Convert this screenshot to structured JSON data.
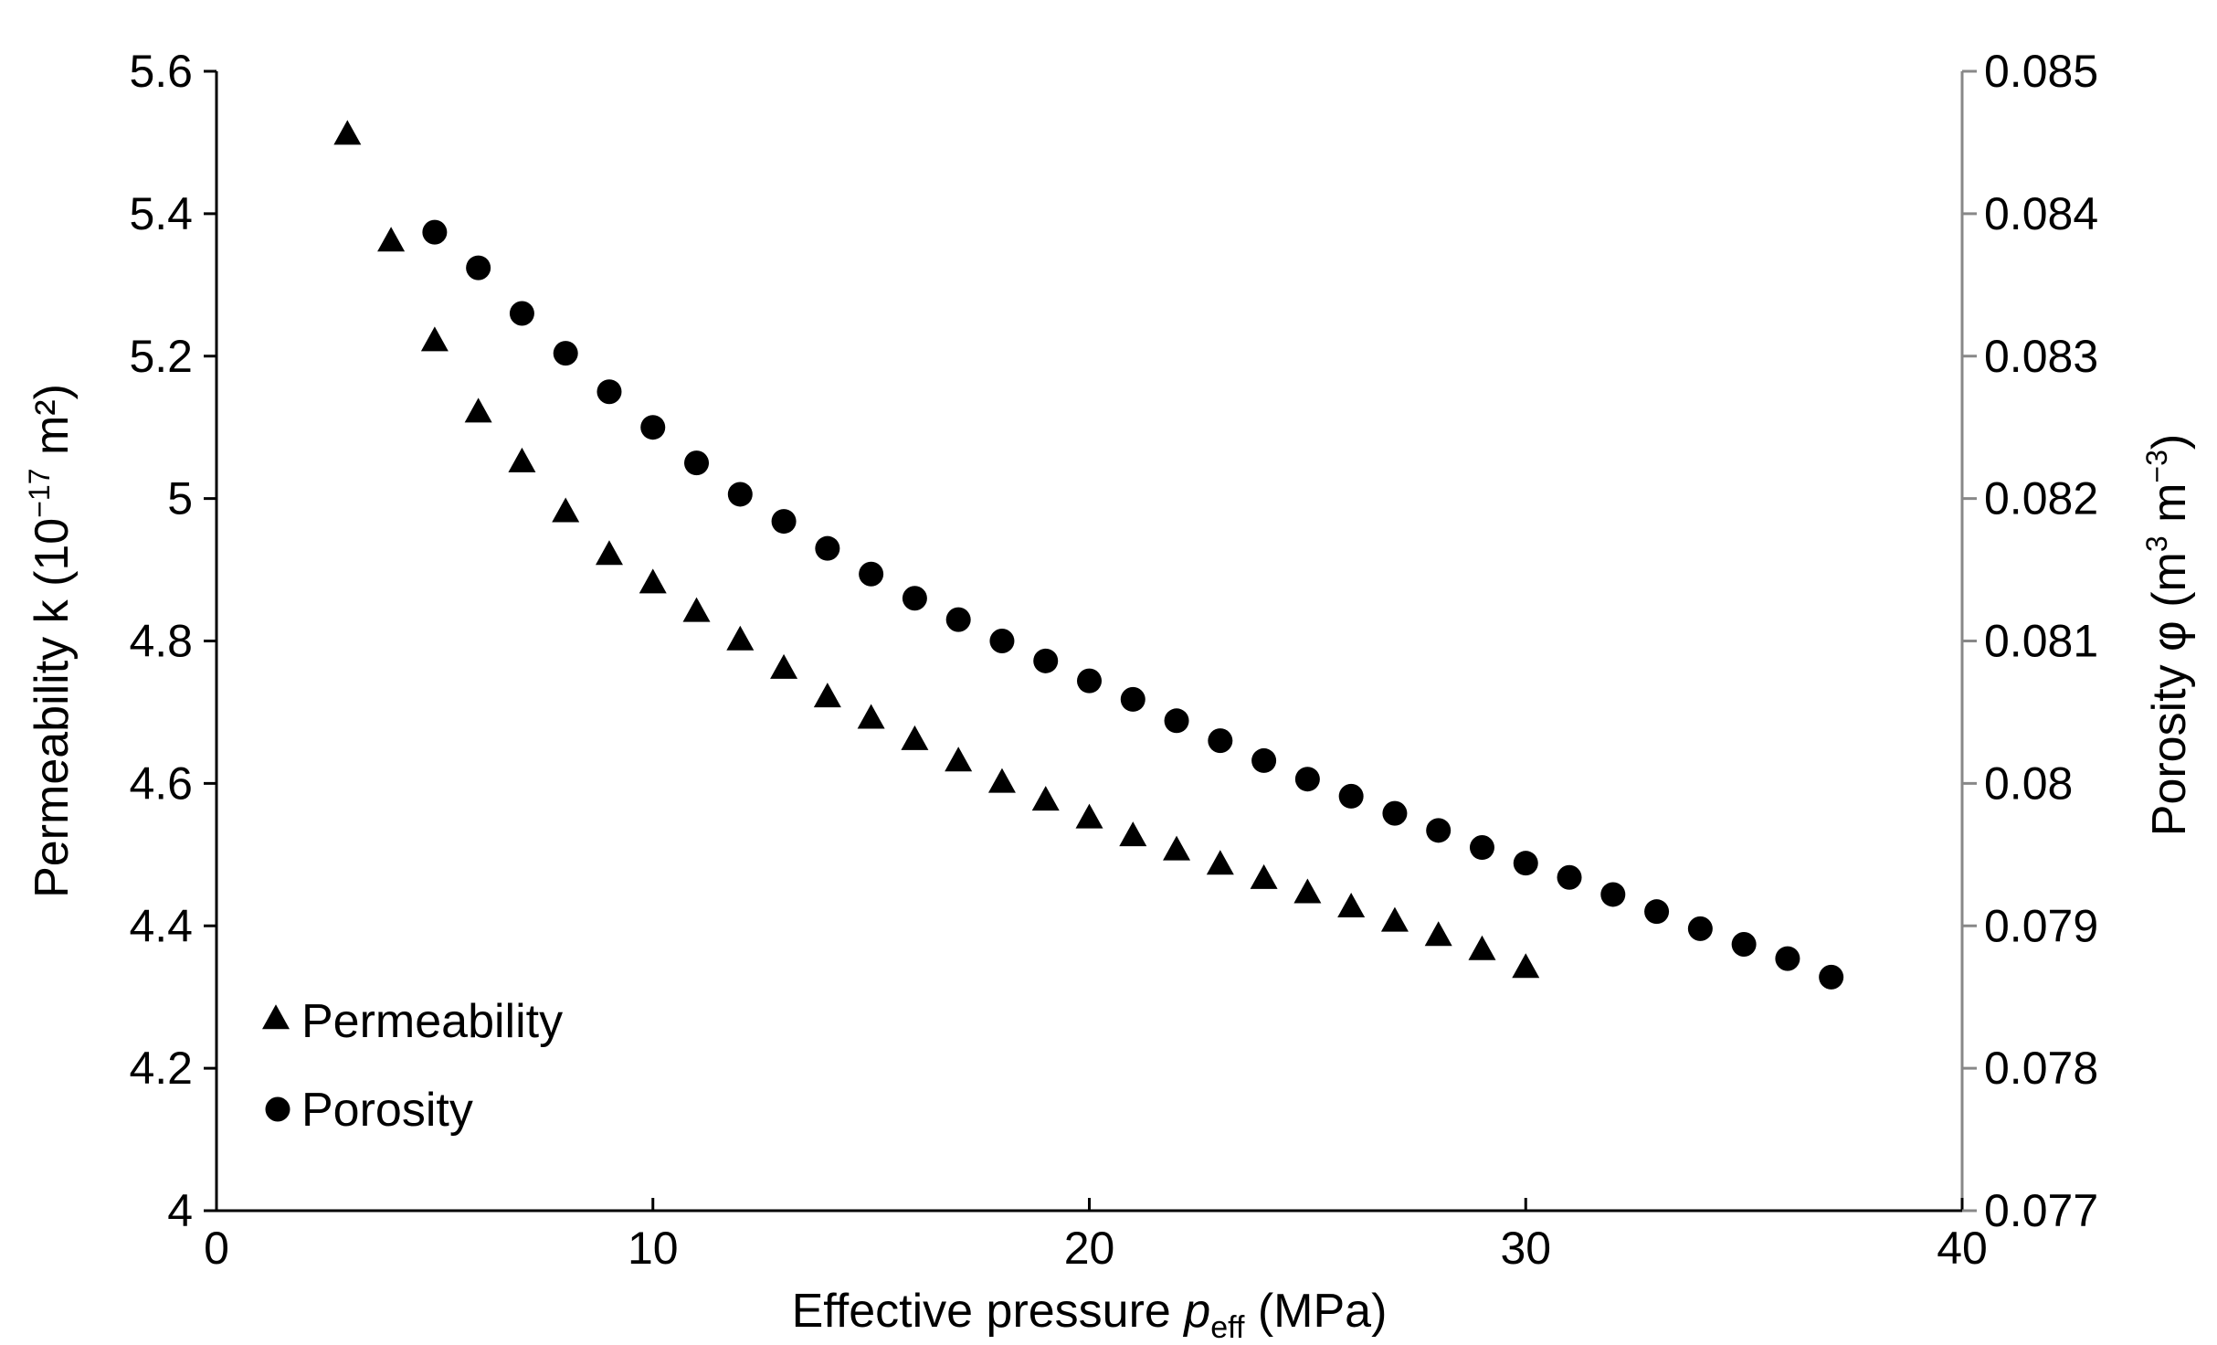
{
  "chart_data": {
    "type": "scatter",
    "title": "",
    "xlabel": {
      "main": "Effective pressure ",
      "var": "p",
      "sub": "eff",
      "unit": " (MPa)"
    },
    "ylabel_left": {
      "main": "Permeability k (10",
      "sup": "−17",
      "unit": " m²)"
    },
    "ylabel_right": {
      "main": "Porosity φ (m",
      "sup1": "3",
      "mid": " m",
      "sup2": "−3",
      "end": ")"
    },
    "xlim": [
      0,
      40
    ],
    "ylim_left": [
      4,
      5.6
    ],
    "ylim_right": [
      0.077,
      0.085
    ],
    "x_ticks": [
      "0",
      "10",
      "20",
      "30",
      "40"
    ],
    "y_left_ticks": [
      "4",
      "4.2",
      "4.4",
      "4.6",
      "4.8",
      "5",
      "5.2",
      "5.4",
      "5.6"
    ],
    "y_right_ticks": [
      "0.077",
      "0.078",
      "0.079",
      "0.08",
      "0.081",
      "0.082",
      "0.083",
      "0.084",
      "0.085"
    ],
    "grid": false,
    "legend_position": "bottom-left",
    "series": [
      {
        "name": "Permeability",
        "marker": "triangle",
        "axis": "left",
        "x": [
          3,
          4,
          5,
          6,
          7,
          8,
          9,
          10,
          11,
          12,
          13,
          14,
          15,
          16,
          17,
          18,
          19,
          20,
          21,
          22,
          23,
          24,
          25,
          26,
          27,
          28,
          29,
          30
        ],
        "y": [
          5.51,
          5.36,
          5.22,
          5.12,
          5.05,
          4.98,
          4.92,
          4.88,
          4.84,
          4.8,
          4.76,
          4.72,
          4.69,
          4.66,
          4.63,
          4.6,
          4.575,
          4.55,
          4.525,
          4.505,
          4.485,
          4.465,
          4.445,
          4.425,
          4.405,
          4.385,
          4.365,
          4.34
        ]
      },
      {
        "name": "Porosity",
        "marker": "circle",
        "axis": "right",
        "x": [
          5,
          6,
          7,
          8,
          9,
          10,
          11,
          12,
          13,
          14,
          15,
          16,
          17,
          18,
          19,
          20,
          21,
          22,
          23,
          24,
          25,
          26,
          27,
          28,
          29,
          30,
          31,
          32,
          33,
          34,
          35,
          36,
          37
        ],
        "y": [
          0.08387,
          0.08362,
          0.0833,
          0.08302,
          0.08275,
          0.0825,
          0.08225,
          0.08203,
          0.08184,
          0.08165,
          0.08147,
          0.0813,
          0.08115,
          0.081,
          0.08086,
          0.08072,
          0.08059,
          0.08044,
          0.0803,
          0.08016,
          0.08003,
          0.07991,
          0.07979,
          0.07967,
          0.07955,
          0.07944,
          0.07934,
          0.07922,
          0.0791,
          0.07898,
          0.07887,
          0.07877,
          0.07864
        ]
      }
    ]
  }
}
